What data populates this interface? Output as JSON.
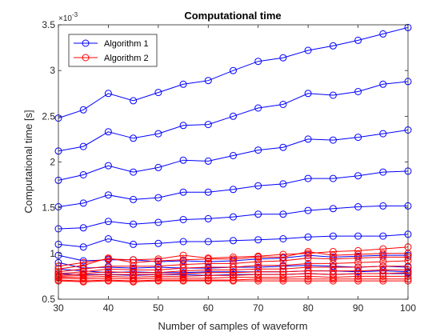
{
  "chart_data": {
    "type": "line",
    "title": "Computational time",
    "xlabel": "Number of samples of waveform",
    "ylabel": "Computational time [s]",
    "y_exponent": "×10",
    "y_exponent_power": "-3",
    "xlim": [
      30,
      100
    ],
    "ylim": [
      0.5,
      3.5
    ],
    "xticks": [
      30,
      40,
      50,
      60,
      70,
      80,
      90,
      100
    ],
    "yticks": [
      0.5,
      1,
      1.5,
      2,
      2.5,
      3,
      3.5
    ],
    "ytick_labels": [
      "0.5",
      "1",
      "1.5",
      "2",
      "2.5",
      "3",
      "3.5"
    ],
    "grid": false,
    "legend_position": "top-left",
    "x": [
      30,
      35,
      40,
      45,
      50,
      55,
      60,
      65,
      70,
      75,
      80,
      85,
      90,
      95,
      100
    ],
    "series": [
      {
        "name": "Algorithm 1",
        "color": "#0000ff",
        "lines": [
          [
            2.48,
            2.57,
            2.75,
            2.67,
            2.76,
            2.85,
            2.89,
            3.0,
            3.1,
            3.14,
            3.22,
            3.27,
            3.33,
            3.4,
            3.47
          ],
          [
            2.12,
            2.17,
            2.33,
            2.26,
            2.31,
            2.4,
            2.41,
            2.5,
            2.59,
            2.63,
            2.75,
            2.73,
            2.77,
            2.85,
            2.88
          ],
          [
            1.8,
            1.86,
            1.96,
            1.89,
            1.94,
            2.02,
            2.01,
            2.07,
            2.13,
            2.16,
            2.25,
            2.24,
            2.27,
            2.31,
            2.35
          ],
          [
            1.51,
            1.55,
            1.64,
            1.59,
            1.61,
            1.67,
            1.67,
            1.7,
            1.74,
            1.76,
            1.82,
            1.82,
            1.85,
            1.89,
            1.9
          ],
          [
            1.27,
            1.28,
            1.35,
            1.32,
            1.34,
            1.37,
            1.38,
            1.4,
            1.43,
            1.43,
            1.47,
            1.49,
            1.51,
            1.52,
            1.52
          ],
          [
            1.1,
            1.07,
            1.16,
            1.1,
            1.11,
            1.13,
            1.13,
            1.14,
            1.15,
            1.16,
            1.18,
            1.19,
            1.19,
            1.19,
            1.21
          ],
          [
            0.98,
            0.92,
            0.93,
            0.93,
            0.91,
            0.92,
            0.91,
            0.92,
            0.94,
            0.95,
            0.98,
            0.96,
            0.97,
            0.98,
            0.98
          ],
          [
            0.9,
            0.84,
            0.85,
            0.84,
            0.85,
            0.84,
            0.84,
            0.85,
            0.85,
            0.86,
            0.87,
            0.86,
            0.85,
            0.86,
            0.85
          ],
          [
            0.83,
            0.81,
            0.79,
            0.8,
            0.79,
            0.79,
            0.8,
            0.8,
            0.8,
            0.8,
            0.81,
            0.81,
            0.8,
            0.81,
            0.8
          ],
          [
            0.78,
            0.77,
            0.77,
            0.76,
            0.77,
            0.77,
            0.76,
            0.77,
            0.77,
            0.77,
            0.78,
            0.77,
            0.78,
            0.78,
            0.78
          ]
        ]
      },
      {
        "name": "Algorithm 2",
        "color": "#ff0000",
        "lines": [
          [
            0.86,
            0.9,
            0.94,
            0.93,
            0.94,
            0.98,
            0.95,
            0.96,
            0.97,
            0.99,
            1.0,
            1.02,
            1.03,
            1.05,
            1.07
          ],
          [
            0.83,
            0.87,
            0.95,
            0.9,
            0.92,
            0.93,
            0.94,
            0.94,
            0.96,
            0.96,
            1.02,
            0.98,
            0.99,
            1.0,
            1.0
          ],
          [
            0.8,
            0.83,
            0.86,
            0.86,
            0.86,
            0.88,
            0.89,
            0.89,
            0.91,
            0.92,
            0.95,
            0.94,
            0.95,
            0.96,
            0.96
          ],
          [
            0.78,
            0.8,
            0.83,
            0.82,
            0.82,
            0.84,
            0.85,
            0.85,
            0.87,
            0.87,
            0.89,
            0.89,
            0.9,
            0.91,
            0.92
          ],
          [
            0.76,
            0.78,
            0.8,
            0.79,
            0.79,
            0.81,
            0.82,
            0.82,
            0.83,
            0.83,
            0.85,
            0.85,
            0.85,
            0.86,
            0.86
          ],
          [
            0.75,
            0.76,
            0.77,
            0.77,
            0.77,
            0.78,
            0.79,
            0.79,
            0.8,
            0.8,
            0.81,
            0.81,
            0.81,
            0.82,
            0.82
          ],
          [
            0.74,
            0.74,
            0.75,
            0.74,
            0.75,
            0.75,
            0.76,
            0.76,
            0.77,
            0.77,
            0.78,
            0.77,
            0.78,
            0.78,
            0.79
          ],
          [
            0.73,
            0.72,
            0.73,
            0.72,
            0.73,
            0.73,
            0.73,
            0.74,
            0.74,
            0.74,
            0.75,
            0.74,
            0.75,
            0.75,
            0.75
          ],
          [
            0.71,
            0.7,
            0.71,
            0.7,
            0.71,
            0.71,
            0.71,
            0.71,
            0.72,
            0.72,
            0.72,
            0.72,
            0.72,
            0.72,
            0.72
          ],
          [
            0.7,
            0.69,
            0.7,
            0.69,
            0.7,
            0.7,
            0.7,
            0.7,
            0.7,
            0.7,
            0.7,
            0.7,
            0.7,
            0.7,
            0.7
          ]
        ]
      }
    ]
  }
}
